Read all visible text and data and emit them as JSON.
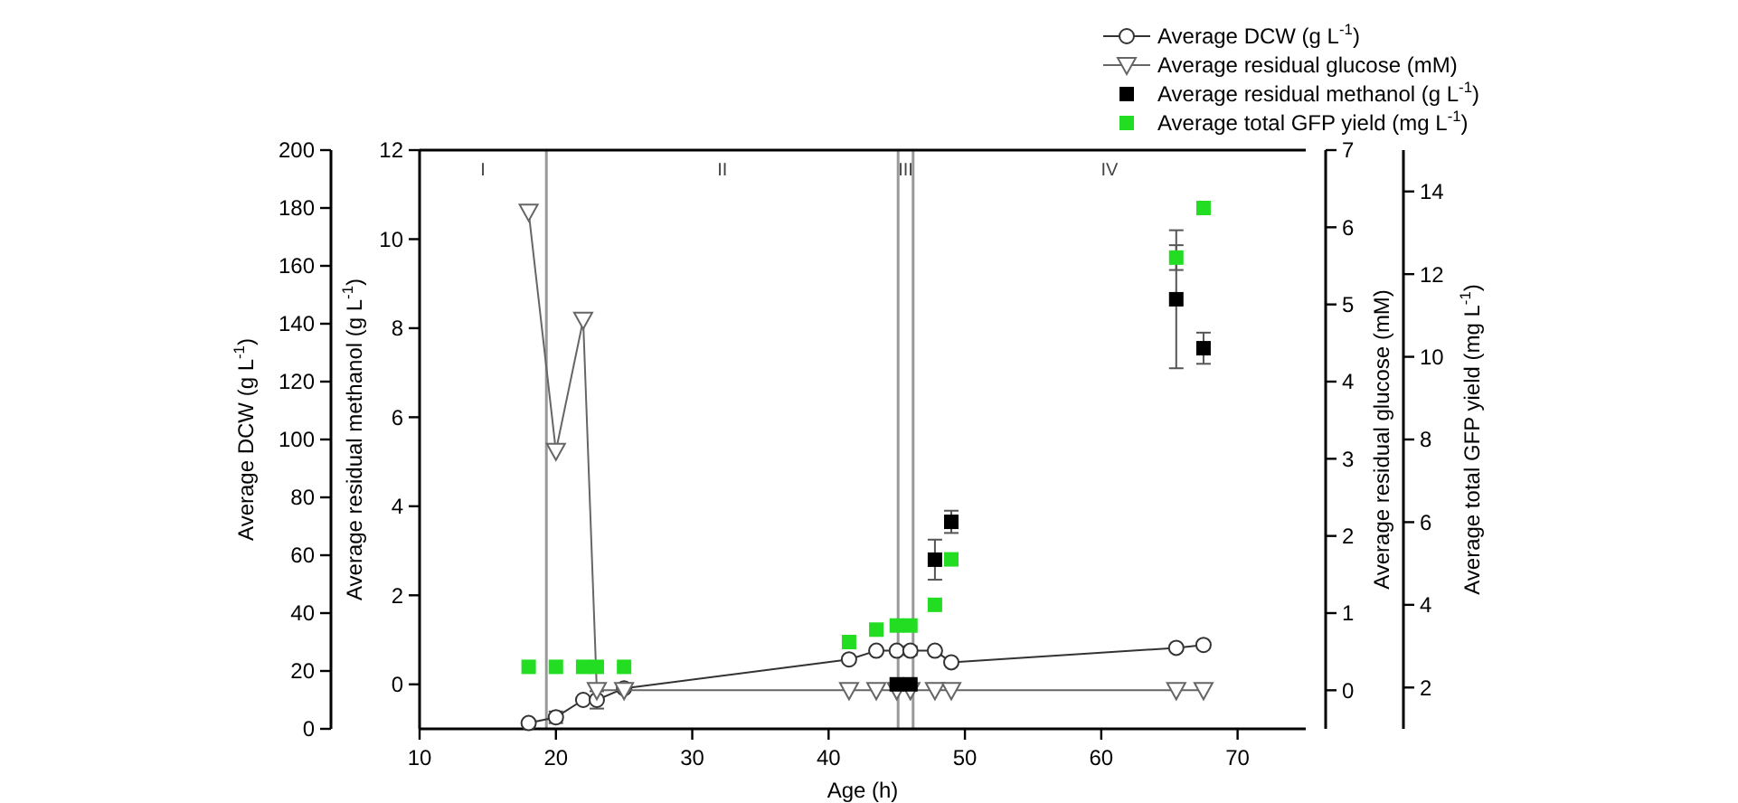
{
  "chart_data": [
    {
      "type": "line",
      "xlabel": "Age (h)",
      "ylabel": "Average DCW (g L$^{-1}$)",
      "y2label": "Average residual methanol (g L$^{-1}$)",
      "y3label": "Average residual glucose (mM)",
      "xlim": [
        10,
        75
      ],
      "xticks": [
        10,
        20,
        30,
        40,
        50,
        60,
        70
      ],
      "ylim": [
        0,
        200
      ],
      "yticks": [
        0,
        20,
        40,
        60,
        80,
        100,
        120,
        140,
        160,
        180,
        200
      ],
      "y2lim": [
        -1,
        12
      ],
      "y2ticks": [
        0,
        2,
        4,
        6,
        8,
        10,
        12
      ],
      "y3lim": [
        -0.5,
        7
      ],
      "y3ticks": [
        0,
        1,
        2,
        3,
        4,
        5,
        6,
        7
      ],
      "legend": "top",
      "ref_lines": [
        {
          "axis": "x",
          "value": 19.3,
          "color": "#999999"
        },
        {
          "axis": "x",
          "value": 45.1,
          "color": "#999999"
        },
        {
          "axis": "x",
          "value": 46.2,
          "color": "#999999"
        }
      ],
      "annotations": [
        "I",
        "II",
        "III",
        "IV"
      ],
      "series": [
        {
          "name": "Average DCW (g L$^{-1}$)",
          "axis": "y",
          "marker": "circle",
          "color": "#333333",
          "x": [
            18,
            20,
            22,
            23,
            25,
            41.5,
            43.5,
            45,
            46,
            47.8,
            49,
            65.5,
            67.5
          ],
          "values": [
            2,
            4,
            10,
            10,
            14,
            24,
            27,
            27,
            27,
            27,
            23,
            28,
            29
          ],
          "errors": [
            null,
            2,
            null,
            3,
            null,
            null,
            null,
            null,
            1.5,
            null,
            null,
            null,
            null
          ]
        },
        {
          "name": "Average residual glucose (mM)",
          "axis": "y3",
          "marker": "triangle",
          "color": "#666666",
          "x": [
            18,
            20,
            22,
            23,
            25,
            41.5,
            43.5,
            45,
            46,
            47.8,
            49,
            65.5,
            67.5
          ],
          "values": [
            6.2,
            3.1,
            4.8,
            0,
            0,
            0,
            0,
            0,
            0,
            0,
            0,
            0,
            0
          ]
        },
        {
          "name": "Average residual methanol (g L$^{-1}$)",
          "type": "scatter",
          "axis": "y2",
          "marker": "square",
          "color": "#000000",
          "x": [
            45,
            46,
            47.8,
            49,
            65.5,
            67.5
          ],
          "values": [
            0,
            0,
            2.8,
            3.65,
            8.65,
            7.55
          ],
          "errors": [
            null,
            null,
            0.45,
            0.25,
            1.55,
            0.35
          ]
        }
      ]
    },
    {
      "type": "scatter",
      "ylabel": "Average total GFP yield (mg L$^{-1}$)",
      "xlim": [
        10,
        75
      ],
      "ylim": [
        1,
        15
      ],
      "yticks": [
        2,
        4,
        6,
        8,
        10,
        12,
        14
      ],
      "tick_labels": "y",
      "legend": "top",
      "series": [
        {
          "name": "Average total GFP yield (mg L$^{-1}$)",
          "marker": "square",
          "color": "#22dd22",
          "x": [
            18,
            20,
            22,
            23,
            25,
            41.5,
            43.5,
            45,
            46,
            47.8,
            49,
            65.5,
            67.5
          ],
          "values": [
            2.5,
            2.5,
            2.5,
            2.5,
            2.5,
            3.1,
            3.4,
            3.5,
            3.5,
            4.0,
            5.1,
            12.4,
            13.6
          ],
          "errors": [
            null,
            null,
            null,
            null,
            null,
            null,
            null,
            null,
            null,
            null,
            null,
            0.3,
            null
          ]
        }
      ]
    }
  ]
}
